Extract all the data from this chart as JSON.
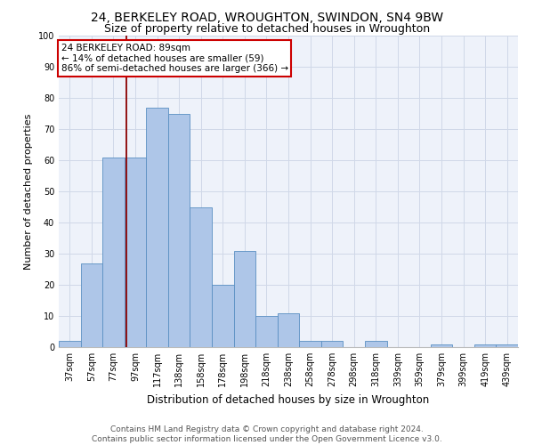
{
  "title": "24, BERKELEY ROAD, WROUGHTON, SWINDON, SN4 9BW",
  "subtitle": "Size of property relative to detached houses in Wroughton",
  "xlabel": "Distribution of detached houses by size in Wroughton",
  "ylabel": "Number of detached properties",
  "bin_labels": [
    "37sqm",
    "57sqm",
    "77sqm",
    "97sqm",
    "117sqm",
    "138sqm",
    "158sqm",
    "178sqm",
    "198sqm",
    "218sqm",
    "238sqm",
    "258sqm",
    "278sqm",
    "298sqm",
    "318sqm",
    "339sqm",
    "359sqm",
    "379sqm",
    "399sqm",
    "419sqm",
    "439sqm"
  ],
  "bar_heights": [
    2,
    27,
    61,
    61,
    77,
    75,
    45,
    20,
    31,
    10,
    11,
    2,
    2,
    0,
    2,
    0,
    0,
    1,
    0,
    1,
    1
  ],
  "bar_color": "#aec6e8",
  "bar_edge_color": "#5a8fc2",
  "grid_color": "#d0d8e8",
  "background_color": "#eef2fa",
  "vline_color": "#8b0000",
  "annotation_text": "24 BERKELEY ROAD: 89sqm\n← 14% of detached houses are smaller (59)\n86% of semi-detached houses are larger (366) →",
  "annotation_box_color": "white",
  "annotation_box_edge": "#cc0000",
  "ylim": [
    0,
    100
  ],
  "yticks": [
    0,
    10,
    20,
    30,
    40,
    50,
    60,
    70,
    80,
    90,
    100
  ],
  "footnote": "Contains HM Land Registry data © Crown copyright and database right 2024.\nContains public sector information licensed under the Open Government Licence v3.0.",
  "title_fontsize": 10,
  "subtitle_fontsize": 9,
  "xlabel_fontsize": 8.5,
  "ylabel_fontsize": 8,
  "tick_fontsize": 7,
  "footnote_fontsize": 6.5,
  "annotation_fontsize": 7.5
}
